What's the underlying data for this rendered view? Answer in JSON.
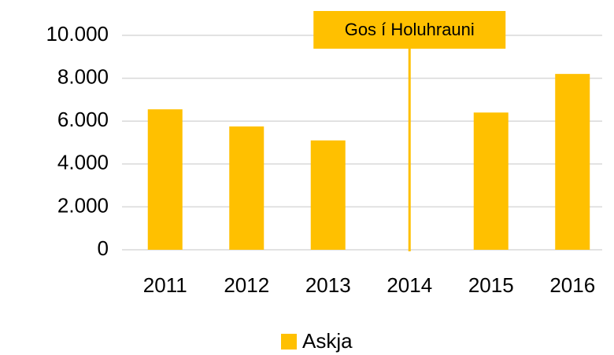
{
  "chart_data": {
    "type": "bar",
    "categories": [
      "2011",
      "2012",
      "2013",
      "2014",
      "2015",
      "2016"
    ],
    "series": [
      {
        "name": "Askja",
        "color": "#ffc000",
        "values": [
          6550,
          5750,
          5100,
          null,
          6400,
          8200
        ]
      }
    ],
    "ylim": [
      0,
      10000
    ],
    "yticks": [
      0,
      {
        "value": 2000,
        "label": "2.000"
      },
      {
        "value": 4000,
        "label": "4.000"
      },
      {
        "value": 6000,
        "label": "6.000"
      },
      {
        "value": 8000,
        "label": "8.000"
      },
      {
        "value": 10000,
        "label": "10.000"
      }
    ],
    "grid": true,
    "legend": "bottom",
    "annotation": {
      "text": "Gos í Holuhrauni",
      "category": "2014",
      "color": "#ffc000"
    }
  }
}
